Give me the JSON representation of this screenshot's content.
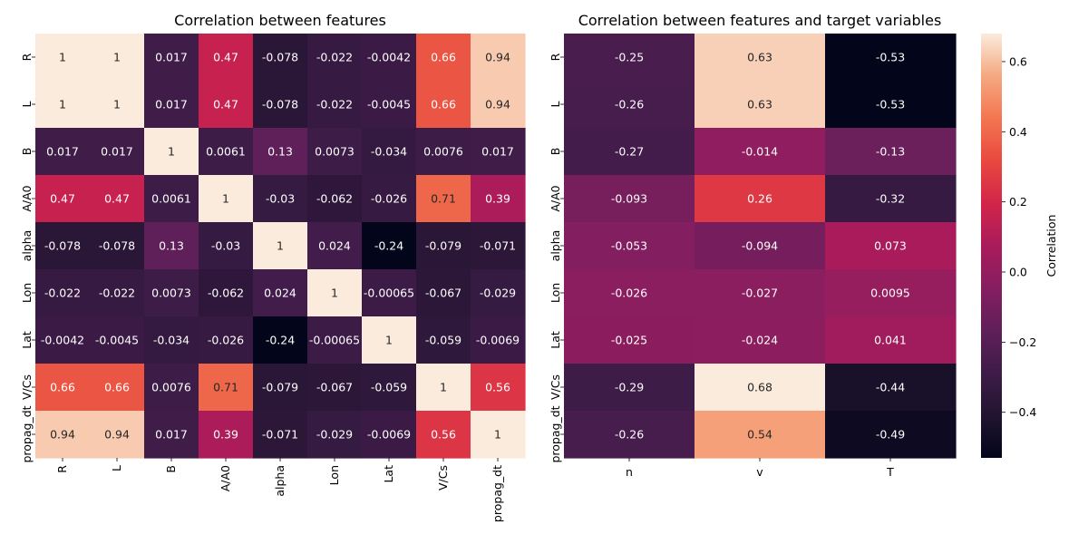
{
  "chart_data": [
    {
      "type": "heatmap",
      "title": "Correlation between features",
      "rows": [
        "R",
        "L",
        "B",
        "A/A0",
        "alpha",
        "Lon",
        "Lat",
        "V/Cs",
        "propag_dt"
      ],
      "cols": [
        "R",
        "L",
        "B",
        "A/A0",
        "alpha",
        "Lon",
        "Lat",
        "V/Cs",
        "propag_dt"
      ],
      "values": [
        [
          1,
          1,
          0.017,
          0.47,
          -0.078,
          -0.022,
          -0.0042,
          0.66,
          0.94
        ],
        [
          1,
          1,
          0.017,
          0.47,
          -0.078,
          -0.022,
          -0.0045,
          0.66,
          0.94
        ],
        [
          0.017,
          0.017,
          1,
          0.0061,
          0.13,
          0.0073,
          -0.034,
          0.0076,
          0.017
        ],
        [
          0.47,
          0.47,
          0.0061,
          1,
          -0.03,
          -0.062,
          -0.026,
          0.71,
          0.39
        ],
        [
          -0.078,
          -0.078,
          0.13,
          -0.03,
          1,
          0.024,
          -0.24,
          -0.079,
          -0.071
        ],
        [
          -0.022,
          -0.022,
          0.0073,
          -0.062,
          0.024,
          1,
          -0.00065,
          -0.067,
          -0.029
        ],
        [
          -0.0042,
          -0.0045,
          -0.034,
          -0.026,
          -0.24,
          -0.00065,
          1,
          -0.059,
          -0.0069
        ],
        [
          0.66,
          0.66,
          0.0076,
          0.71,
          -0.079,
          -0.067,
          -0.059,
          1,
          0.56
        ],
        [
          0.94,
          0.94,
          0.017,
          0.39,
          -0.071,
          -0.029,
          -0.0069,
          0.56,
          1
        ]
      ],
      "labels": [
        [
          "1",
          "1",
          "0.017",
          "0.47",
          "-0.078",
          "-0.022",
          "-0.0042",
          "0.66",
          "0.94"
        ],
        [
          "1",
          "1",
          "0.017",
          "0.47",
          "-0.078",
          "-0.022",
          "-0.0045",
          "0.66",
          "0.94"
        ],
        [
          "0.017",
          "0.017",
          "1",
          "0.0061",
          "0.13",
          "0.0073",
          "-0.034",
          "0.0076",
          "0.017"
        ],
        [
          "0.47",
          "0.47",
          "0.0061",
          "1",
          "-0.03",
          "-0.062",
          "-0.026",
          "0.71",
          "0.39"
        ],
        [
          "-0.078",
          "-0.078",
          "0.13",
          "-0.03",
          "1",
          "0.024",
          "-0.24",
          "-0.079",
          "-0.071"
        ],
        [
          "-0.022",
          "-0.022",
          "0.0073",
          "-0.062",
          "0.024",
          "1",
          "-0.00065",
          "-0.067",
          "-0.029"
        ],
        [
          "-0.0042",
          "-0.0045",
          "-0.034",
          "-0.026",
          "-0.24",
          "-0.00065",
          "1",
          "-0.059",
          "-0.0069"
        ],
        [
          "0.66",
          "0.66",
          "0.0076",
          "0.71",
          "-0.079",
          "-0.067",
          "-0.059",
          "1",
          "0.56"
        ],
        [
          "0.94",
          "0.94",
          "0.017",
          "0.39",
          "-0.071",
          "-0.029",
          "-0.0069",
          "0.56",
          "1"
        ]
      ],
      "colormap": "rocket",
      "color_range": [
        -0.24,
        1
      ]
    },
    {
      "type": "heatmap",
      "title": "Correlation between features and target variables",
      "rows": [
        "R",
        "L",
        "B",
        "A/A0",
        "alpha",
        "Lon",
        "Lat",
        "V/Cs",
        "propag_dt"
      ],
      "cols": [
        "n",
        "v",
        "T"
      ],
      "values": [
        [
          -0.25,
          0.63,
          -0.53
        ],
        [
          -0.26,
          0.63,
          -0.53
        ],
        [
          -0.27,
          -0.014,
          -0.13
        ],
        [
          -0.093,
          0.26,
          -0.32
        ],
        [
          -0.053,
          -0.094,
          0.073
        ],
        [
          -0.026,
          -0.027,
          0.0095
        ],
        [
          -0.025,
          -0.024,
          0.041
        ],
        [
          -0.29,
          0.68,
          -0.44
        ],
        [
          -0.26,
          0.54,
          -0.49
        ]
      ],
      "labels": [
        [
          "-0.25",
          "0.63",
          "-0.53"
        ],
        [
          "-0.26",
          "0.63",
          "-0.53"
        ],
        [
          "-0.27",
          "-0.014",
          "-0.13"
        ],
        [
          "-0.093",
          "0.26",
          "-0.32"
        ],
        [
          "-0.053",
          "-0.094",
          "0.073"
        ],
        [
          "-0.026",
          "-0.027",
          "0.0095"
        ],
        [
          "-0.025",
          "-0.024",
          "0.041"
        ],
        [
          "-0.29",
          "0.68",
          "-0.44"
        ],
        [
          "-0.26",
          "0.54",
          "-0.49"
        ]
      ],
      "colormap": "rocket",
      "color_range": [
        -0.53,
        0.68
      ],
      "colorbar": {
        "label": "Correlation",
        "ticks": [
          -0.4,
          -0.2,
          0.0,
          0.2,
          0.4,
          0.6
        ],
        "tick_labels": [
          "−0.4",
          "−0.2",
          "0.0",
          "0.2",
          "0.4",
          "0.6"
        ]
      }
    }
  ]
}
